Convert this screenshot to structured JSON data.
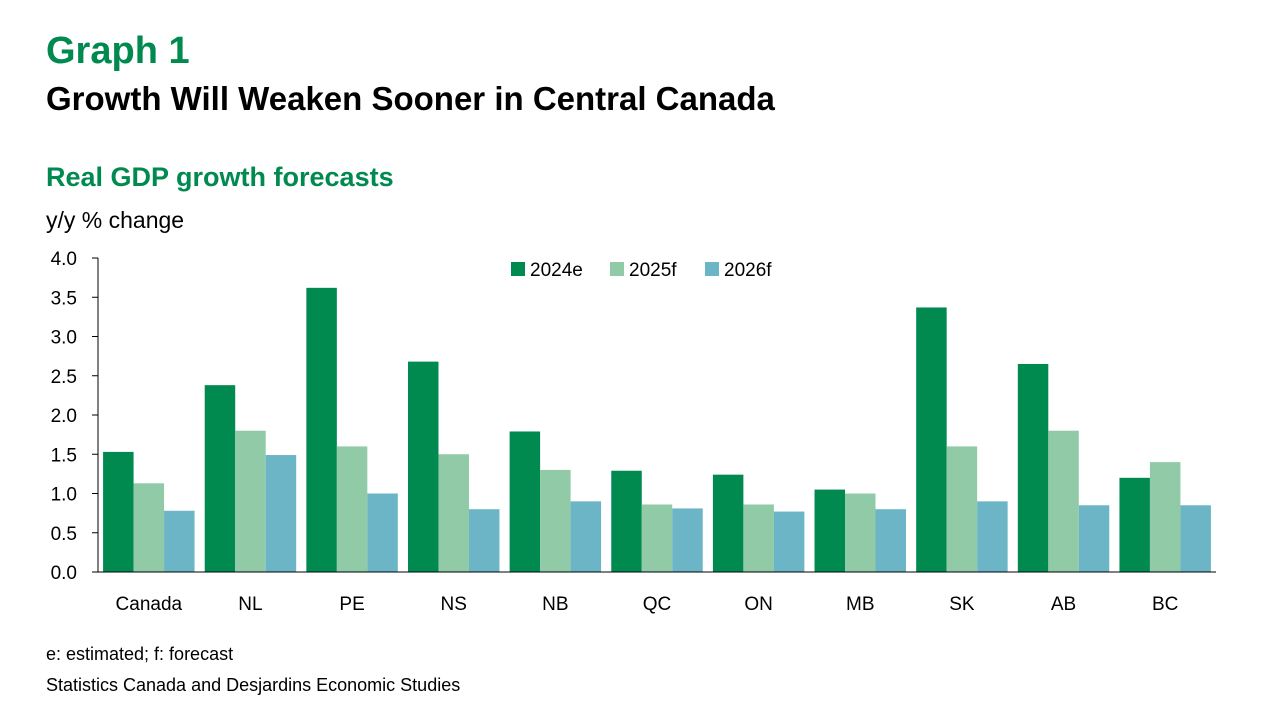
{
  "header": {
    "graph_label": "Graph 1",
    "title": "Growth Will Weaken Sooner in Central Canada"
  },
  "chart_data": {
    "type": "bar",
    "title": "Real GDP growth forecasts",
    "ylabel": "y/y % change",
    "xlabel": "",
    "ylim": [
      0,
      4.0
    ],
    "yticks": [
      "0.0",
      "0.5",
      "1.0",
      "1.5",
      "2.0",
      "2.5",
      "3.0",
      "3.5",
      "4.0"
    ],
    "grid": false,
    "legend_position": "top-center",
    "categories": [
      "Canada",
      "NL",
      "PE",
      "NS",
      "NB",
      "QC",
      "ON",
      "MB",
      "SK",
      "AB",
      "BC"
    ],
    "series": [
      {
        "name": "2024e",
        "color": "#008A4F",
        "values": [
          1.53,
          2.38,
          3.62,
          2.68,
          1.79,
          1.29,
          1.24,
          1.05,
          3.37,
          2.65,
          1.2
        ]
      },
      {
        "name": "2025f",
        "color": "#90CAA7",
        "values": [
          1.13,
          1.8,
          1.6,
          1.5,
          1.3,
          0.86,
          0.86,
          1.0,
          1.6,
          1.8,
          1.4
        ]
      },
      {
        "name": "2026f",
        "color": "#6BB5C6",
        "values": [
          0.78,
          1.49,
          1.0,
          0.8,
          0.9,
          0.81,
          0.77,
          0.8,
          0.9,
          0.85,
          0.85
        ]
      }
    ]
  },
  "footer": {
    "note": "e: estimated; f: forecast",
    "source": "Statistics Canada and Desjardins Economic Studies"
  }
}
